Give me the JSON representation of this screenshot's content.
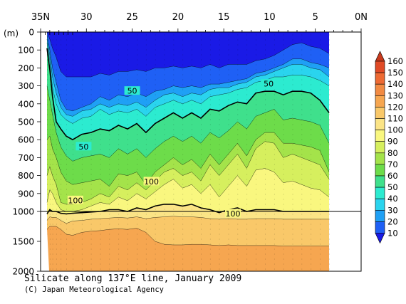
{
  "chart_data": {
    "type": "heatmap",
    "title": "Silicate along 137°E line, January 2009",
    "credit": "(C) Japan Meteorological Agency",
    "x_axis": {
      "range": [
        35,
        0
      ],
      "ticks": [
        35,
        30,
        25,
        20,
        15,
        10,
        5,
        0
      ],
      "tick_labels": [
        "35N",
        "30",
        "25",
        "20",
        "15",
        "10",
        "5",
        "0N"
      ]
    },
    "y_axis": {
      "unit_label": "(m)",
      "upper_ticks": [
        0,
        100,
        200,
        300,
        400,
        500,
        600,
        700,
        800,
        900,
        1000
      ],
      "lower_ticks": [
        1500,
        2000
      ],
      "range": [
        0,
        2000
      ]
    },
    "colorbar": {
      "levels": [
        10,
        20,
        30,
        40,
        50,
        60,
        70,
        80,
        90,
        100,
        110,
        120,
        130,
        140,
        150,
        160
      ],
      "colors": [
        "#1a1ae6",
        "#1f60f5",
        "#1fa0f5",
        "#2ad4ee",
        "#2cebd0",
        "#3fe08c",
        "#6ddc4a",
        "#a4e34a",
        "#d6ef5e",
        "#f9f77f",
        "#fbe486",
        "#f9c869",
        "#f6a650",
        "#f28a42",
        "#ee6a33",
        "#e04a26",
        "#c83a1d"
      ]
    },
    "contour_labels": [
      "50",
      "50",
      "50",
      "100",
      "100",
      "100"
    ],
    "columns": [
      {
        "lat": 34.3,
        "d": [
          0,
          20,
          40,
          60,
          90,
          300,
          600,
          800,
          950,
          1040,
          1150,
          1300
        ]
      },
      {
        "lat": 34.0,
        "d": [
          40,
          100,
          130,
          160,
          210,
          380,
          580,
          750,
          880,
          990,
          1090,
          1250
        ]
      },
      {
        "lat": 33.7,
        "d": [
          90,
          200,
          250,
          310,
          360,
          460,
          650,
          800,
          900,
          1000,
          1100,
          1250
        ]
      },
      {
        "lat": 33.3,
        "d": [
          140,
          280,
          340,
          400,
          500,
          560,
          700,
          850,
          950,
          1000,
          1100,
          1250
        ]
      },
      {
        "lat": 32.8,
        "d": [
          220,
          380,
          420,
          460,
          540,
          640,
          780,
          950,
          990,
          1030,
          1150,
          1300
        ]
      },
      {
        "lat": 32.2,
        "d": [
          250,
          430,
          460,
          490,
          580,
          690,
          830,
          960,
          1000,
          1040,
          1200,
          1380
        ]
      },
      {
        "lat": 31.5,
        "d": [
          250,
          440,
          470,
          510,
          600,
          720,
          850,
          960,
          1000,
          1030,
          1160,
          1400
        ]
      },
      {
        "lat": 30.5,
        "d": [
          250,
          420,
          440,
          480,
          570,
          700,
          840,
          950,
          990,
          1020,
          1150,
          1350
        ]
      },
      {
        "lat": 29.5,
        "d": [
          250,
          400,
          430,
          470,
          560,
          690,
          830,
          930,
          970,
          1010,
          1130,
          1330
        ]
      },
      {
        "lat": 28.5,
        "d": [
          230,
          360,
          400,
          430,
          540,
          680,
          820,
          900,
          950,
          1000,
          1120,
          1320
        ]
      },
      {
        "lat": 27.5,
        "d": [
          240,
          380,
          420,
          460,
          550,
          700,
          860,
          920,
          960,
          990,
          1110,
          1300
        ]
      },
      {
        "lat": 26.5,
        "d": [
          220,
          350,
          400,
          440,
          520,
          650,
          790,
          860,
          920,
          990,
          1100,
          1290
        ]
      },
      {
        "lat": 25.5,
        "d": [
          220,
          360,
          410,
          450,
          540,
          680,
          800,
          880,
          940,
          1000,
          1110,
          1300
        ]
      },
      {
        "lat": 24.5,
        "d": [
          210,
          340,
          390,
          430,
          510,
          650,
          780,
          840,
          900,
          980,
          1090,
          1280
        ]
      },
      {
        "lat": 23.5,
        "d": [
          220,
          360,
          420,
          470,
          560,
          700,
          850,
          880,
          930,
          990,
          1120,
          1350
        ]
      },
      {
        "lat": 22.5,
        "d": [
          200,
          330,
          380,
          420,
          510,
          650,
          780,
          830,
          890,
          970,
          1100,
          1500
        ]
      },
      {
        "lat": 21.5,
        "d": [
          200,
          320,
          350,
          400,
          480,
          610,
          740,
          780,
          850,
          960,
          1090,
          1550
        ]
      },
      {
        "lat": 20.5,
        "d": [
          190,
          300,
          340,
          380,
          450,
          580,
          700,
          760,
          820,
          960,
          1080,
          1560
        ]
      },
      {
        "lat": 19.5,
        "d": [
          200,
          310,
          360,
          400,
          480,
          610,
          740,
          800,
          870,
          970,
          1090,
          1560
        ]
      },
      {
        "lat": 18.5,
        "d": [
          190,
          300,
          340,
          380,
          450,
          580,
          710,
          780,
          850,
          960,
          1090,
          1550
        ]
      },
      {
        "lat": 17.5,
        "d": [
          200,
          310,
          350,
          400,
          480,
          620,
          760,
          830,
          900,
          980,
          1100,
          1550
        ]
      },
      {
        "lat": 16.5,
        "d": [
          180,
          290,
          320,
          360,
          430,
          560,
          680,
          740,
          850,
          990,
          1120,
          1560
        ]
      },
      {
        "lat": 15.5,
        "d": [
          200,
          290,
          310,
          350,
          440,
          590,
          740,
          800,
          920,
          1020,
          1130,
          1570
        ]
      },
      {
        "lat": 14.5,
        "d": [
          180,
          280,
          310,
          340,
          410,
          550,
          680,
          740,
          860,
          990,
          1120,
          1560
        ]
      },
      {
        "lat": 13.5,
        "d": [
          180,
          270,
          290,
          320,
          390,
          500,
          620,
          680,
          800,
          980,
          1130,
          1570
        ]
      },
      {
        "lat": 12.5,
        "d": [
          180,
          260,
          280,
          310,
          400,
          540,
          690,
          760,
          860,
          1000,
          1130,
          1570
        ]
      },
      {
        "lat": 11.5,
        "d": [
          160,
          230,
          250,
          280,
          340,
          470,
          600,
          650,
          770,
          990,
          1120,
          1570
        ]
      },
      {
        "lat": 10.5,
        "d": [
          150,
          220,
          240,
          270,
          330,
          450,
          560,
          610,
          760,
          990,
          1120,
          1570
        ]
      },
      {
        "lat": 9.5,
        "d": [
          130,
          200,
          220,
          250,
          330,
          430,
          560,
          620,
          780,
          990,
          1120,
          1570
        ]
      },
      {
        "lat": 8.5,
        "d": [
          100,
          180,
          200,
          250,
          350,
          490,
          620,
          700,
          840,
          1000,
          1130,
          1580
        ]
      },
      {
        "lat": 7.5,
        "d": [
          70,
          150,
          180,
          240,
          330,
          480,
          620,
          680,
          830,
          1000,
          1130,
          1580
        ]
      },
      {
        "lat": 6.5,
        "d": [
          60,
          150,
          180,
          240,
          330,
          490,
          630,
          700,
          850,
          1000,
          1130,
          1580
        ]
      },
      {
        "lat": 5.5,
        "d": [
          80,
          170,
          200,
          250,
          340,
          500,
          640,
          720,
          870,
          1000,
          1130,
          1580
        ]
      },
      {
        "lat": 4.5,
        "d": [
          90,
          180,
          210,
          270,
          380,
          520,
          660,
          740,
          880,
          1000,
          1130,
          1580
        ]
      },
      {
        "lat": 3.5,
        "d": [
          120,
          200,
          250,
          300,
          450,
          620,
          780,
          820,
          920,
          1000,
          1130,
          1580
        ]
      }
    ]
  }
}
